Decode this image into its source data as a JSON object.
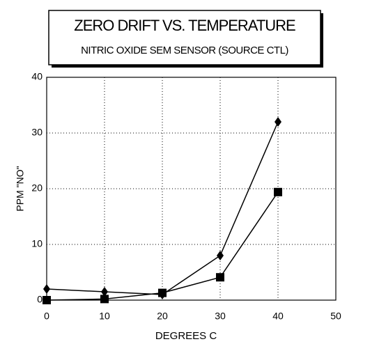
{
  "chart_data": {
    "type": "line",
    "title": "ZERO DRIFT VS. TEMPERATURE",
    "subtitle": "NITRIC OXIDE SEM SENSOR (SOURCE CTL)",
    "x_label": "DEGREES C",
    "y_label": "PPM \"NO\"",
    "x": [
      0,
      10,
      20,
      30,
      40
    ],
    "series": [
      {
        "color": "#000000",
        "marker": "diamond",
        "values": [
          2,
          1.5,
          1,
          8,
          32
        ]
      },
      {
        "color": "#000000",
        "marker": "square",
        "values": [
          0,
          0.2,
          1.3,
          4.1,
          19.4
        ]
      }
    ],
    "xlim": [
      0,
      50
    ],
    "xticks": [
      0,
      10,
      20,
      30,
      40,
      50
    ],
    "ylim": [
      0,
      40
    ],
    "yticks": [
      0,
      10,
      20,
      30,
      40
    ],
    "grid": true
  }
}
